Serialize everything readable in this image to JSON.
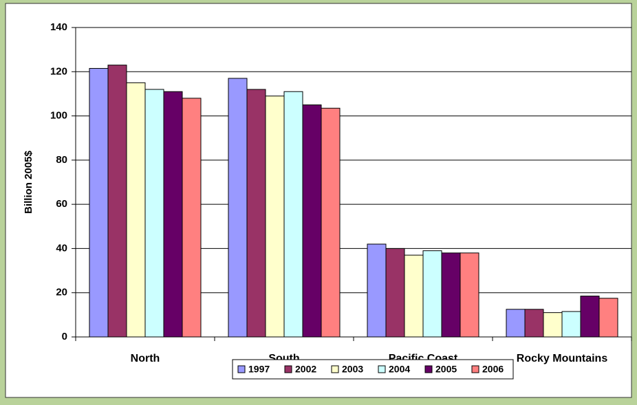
{
  "chart_data": {
    "type": "bar",
    "y_label": "Billion 2005$",
    "categories": [
      "North",
      "South",
      "Pacific Coast",
      "Rocky Mountains"
    ],
    "series": [
      {
        "name": "1997",
        "color": "#9999ff",
        "values": [
          121.5,
          117,
          42,
          12.5
        ]
      },
      {
        "name": "2002",
        "color": "#993366",
        "values": [
          123,
          112,
          40,
          12.5
        ]
      },
      {
        "name": "2003",
        "color": "#ffffcc",
        "values": [
          115,
          109,
          37,
          11
        ]
      },
      {
        "name": "2004",
        "color": "#ccffff",
        "values": [
          112,
          111,
          39,
          11.5
        ]
      },
      {
        "name": "2005",
        "color": "#660066",
        "values": [
          111,
          105,
          38,
          18.5
        ]
      },
      {
        "name": "2006",
        "color": "#ff8080",
        "values": [
          108,
          103.5,
          38,
          17.5
        ]
      }
    ],
    "ylim": [
      0,
      140
    ],
    "yticks": [
      0,
      20,
      40,
      60,
      80,
      100,
      120,
      140
    ],
    "grid": true,
    "legend": "bottom"
  }
}
